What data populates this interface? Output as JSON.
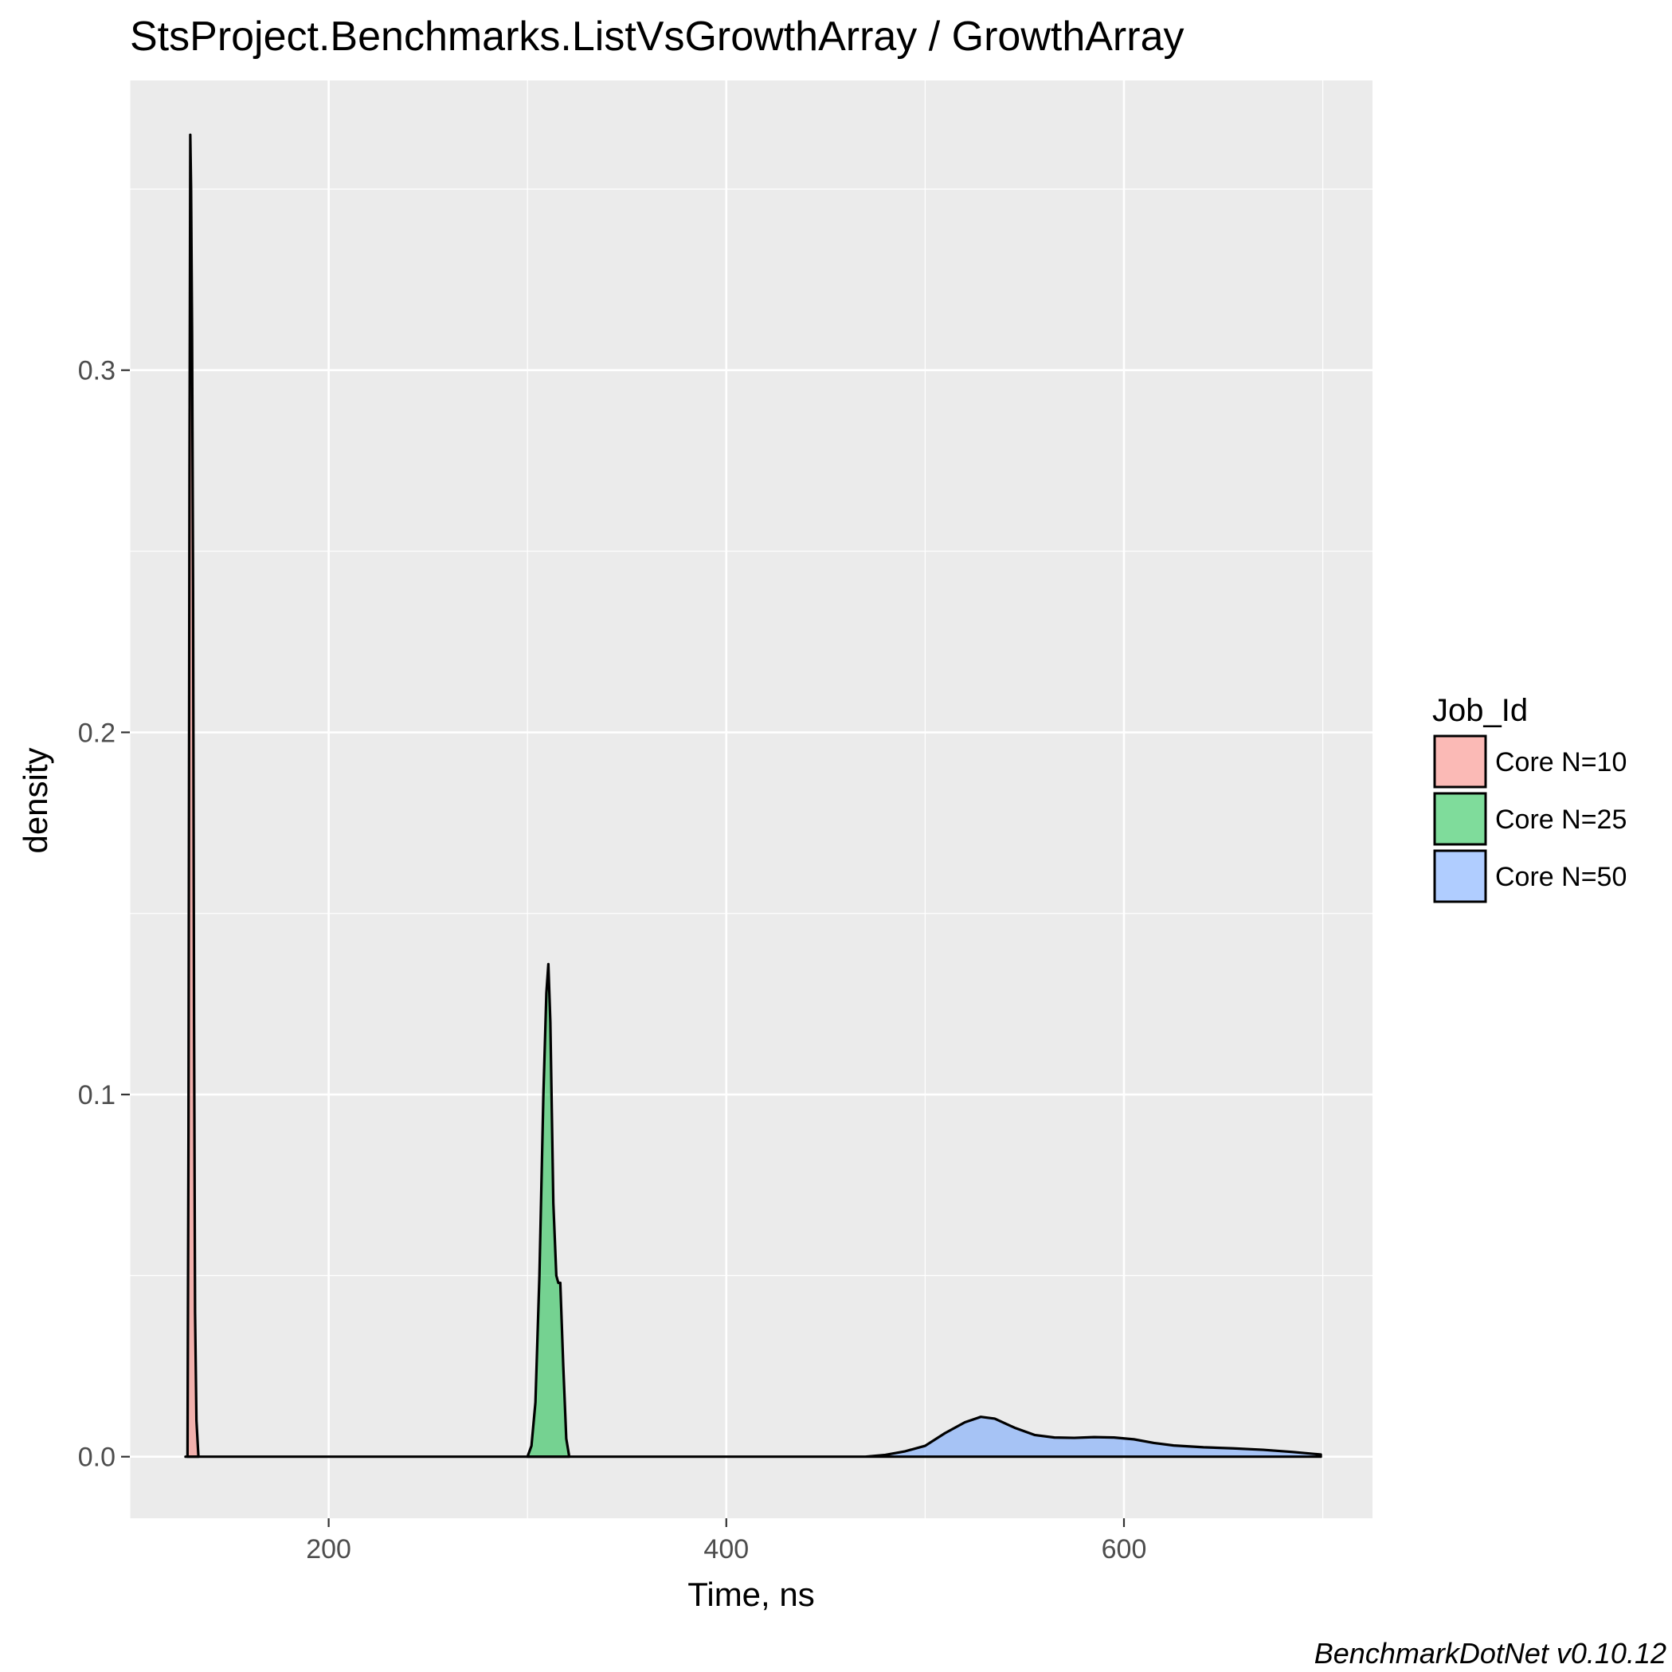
{
  "chart_data": {
    "type": "area",
    "title": "StsProject.Benchmarks.ListVsGrowthArray / GrowthArray",
    "xlabel": "Time, ns",
    "ylabel": "density",
    "caption": "BenchmarkDotNet v0.10.12",
    "xlim": [
      100,
      725
    ],
    "ylim": [
      -0.017,
      0.38
    ],
    "x_ticks": [
      200,
      400,
      600
    ],
    "x_tick_labels": [
      "200",
      "400",
      "600"
    ],
    "y_ticks": [
      0.0,
      0.1,
      0.2,
      0.3
    ],
    "y_tick_labels": [
      "0.0",
      "0.1",
      "0.2",
      "0.3"
    ],
    "grid": true,
    "legend": {
      "title": "Job_Id",
      "position": "right"
    },
    "series": [
      {
        "name": "Core N=10",
        "color": "#F8766D",
        "points": [
          [
            129.0,
            0.0
          ],
          [
            129.5,
            0.09
          ],
          [
            130.0,
            0.27
          ],
          [
            130.4,
            0.365
          ],
          [
            130.8,
            0.35
          ],
          [
            131.3,
            0.31
          ],
          [
            131.8,
            0.24
          ],
          [
            132.3,
            0.12
          ],
          [
            132.8,
            0.04
          ],
          [
            133.5,
            0.01
          ],
          [
            134.5,
            0.0
          ]
        ]
      },
      {
        "name": "Core N=25",
        "color": "#00BA38",
        "points": [
          [
            300,
            0.0
          ],
          [
            302,
            0.003
          ],
          [
            304,
            0.015
          ],
          [
            306,
            0.05
          ],
          [
            308,
            0.1
          ],
          [
            309.5,
            0.128
          ],
          [
            310.5,
            0.136
          ],
          [
            311.5,
            0.12
          ],
          [
            313,
            0.07
          ],
          [
            314.5,
            0.05
          ],
          [
            315.5,
            0.048
          ],
          [
            316.5,
            0.048
          ],
          [
            318,
            0.025
          ],
          [
            319.5,
            0.005
          ],
          [
            321,
            0.0
          ]
        ]
      },
      {
        "name": "Core N=50",
        "color": "#619CFF",
        "points": [
          [
            128,
            0.0
          ],
          [
            470,
            0.0
          ],
          [
            480,
            0.0005
          ],
          [
            490,
            0.0015
          ],
          [
            500,
            0.003
          ],
          [
            510,
            0.0065
          ],
          [
            520,
            0.0095
          ],
          [
            528,
            0.011
          ],
          [
            535,
            0.0105
          ],
          [
            545,
            0.008
          ],
          [
            555,
            0.006
          ],
          [
            565,
            0.0053
          ],
          [
            575,
            0.0052
          ],
          [
            585,
            0.0054
          ],
          [
            595,
            0.0053
          ],
          [
            605,
            0.0048
          ],
          [
            615,
            0.0038
          ],
          [
            625,
            0.0031
          ],
          [
            640,
            0.0026
          ],
          [
            655,
            0.0023
          ],
          [
            670,
            0.0019
          ],
          [
            685,
            0.0013
          ],
          [
            699,
            0.0006
          ]
        ]
      }
    ]
  }
}
